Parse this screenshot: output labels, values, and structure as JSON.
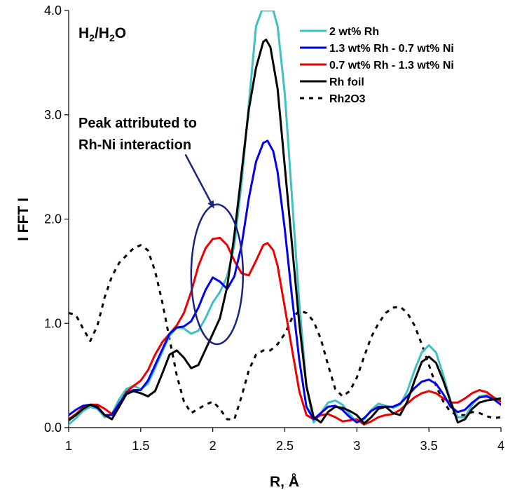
{
  "chart_data": {
    "type": "line",
    "xlabel": "R, Å",
    "ylabel": "I FFT I",
    "xlim": [
      1,
      4
    ],
    "ylim": [
      0,
      4
    ],
    "xticks": [
      "1",
      "1.5",
      "2",
      "2.5",
      "3",
      "3.5",
      "4"
    ],
    "yticks": [
      "0.0",
      "1.0",
      "2.0",
      "3.0",
      "4.0"
    ],
    "grid": false,
    "legend_position": "top-right",
    "condition_label": {
      "base": "H",
      "sub1": "2",
      "mid": "/H",
      "sub2": "2",
      "end": "O"
    },
    "annotation": {
      "line1": "Peak attributed to",
      "line2": "Rh-Ni interaction"
    },
    "series": [
      {
        "name": "2 wt% Rh",
        "color": "#40c0c0",
        "style": "solid",
        "points": [
          [
            1.0,
            0.03
          ],
          [
            1.05,
            0.09
          ],
          [
            1.1,
            0.16
          ],
          [
            1.15,
            0.2
          ],
          [
            1.2,
            0.18
          ],
          [
            1.25,
            0.1
          ],
          [
            1.3,
            0.13
          ],
          [
            1.35,
            0.27
          ],
          [
            1.4,
            0.37
          ],
          [
            1.45,
            0.4
          ],
          [
            1.5,
            0.37
          ],
          [
            1.55,
            0.42
          ],
          [
            1.6,
            0.57
          ],
          [
            1.65,
            0.73
          ],
          [
            1.7,
            0.88
          ],
          [
            1.75,
            0.96
          ],
          [
            1.8,
            0.95
          ],
          [
            1.85,
            0.9
          ],
          [
            1.9,
            0.93
          ],
          [
            1.95,
            1.05
          ],
          [
            2.0,
            1.2
          ],
          [
            2.05,
            1.3
          ],
          [
            2.1,
            1.45
          ],
          [
            2.15,
            1.75
          ],
          [
            2.2,
            2.35
          ],
          [
            2.25,
            3.1
          ],
          [
            2.3,
            3.85
          ],
          [
            2.34,
            4.0
          ],
          [
            2.42,
            4.0
          ],
          [
            2.45,
            3.85
          ],
          [
            2.5,
            3.2
          ],
          [
            2.55,
            2.2
          ],
          [
            2.6,
            1.2
          ],
          [
            2.65,
            0.4
          ],
          [
            2.7,
            0.05
          ],
          [
            2.75,
            0.14
          ],
          [
            2.8,
            0.24
          ],
          [
            2.85,
            0.26
          ],
          [
            2.9,
            0.22
          ],
          [
            2.95,
            0.13
          ],
          [
            3.0,
            0.05
          ],
          [
            3.05,
            0.08
          ],
          [
            3.1,
            0.17
          ],
          [
            3.15,
            0.23
          ],
          [
            3.2,
            0.21
          ],
          [
            3.25,
            0.19
          ],
          [
            3.3,
            0.22
          ],
          [
            3.35,
            0.35
          ],
          [
            3.4,
            0.55
          ],
          [
            3.45,
            0.72
          ],
          [
            3.5,
            0.79
          ],
          [
            3.55,
            0.72
          ],
          [
            3.6,
            0.5
          ],
          [
            3.65,
            0.25
          ],
          [
            3.7,
            0.1
          ],
          [
            3.75,
            0.1
          ],
          [
            3.8,
            0.22
          ],
          [
            3.85,
            0.3
          ],
          [
            3.9,
            0.31
          ],
          [
            3.95,
            0.28
          ],
          [
            4.0,
            0.26
          ]
        ]
      },
      {
        "name": "1.3 wt% Rh - 0.7 wt% Ni",
        "color": "#0000ee",
        "style": "solid",
        "points": [
          [
            1.0,
            0.12
          ],
          [
            1.05,
            0.17
          ],
          [
            1.1,
            0.21
          ],
          [
            1.15,
            0.22
          ],
          [
            1.2,
            0.19
          ],
          [
            1.25,
            0.12
          ],
          [
            1.3,
            0.12
          ],
          [
            1.35,
            0.23
          ],
          [
            1.4,
            0.33
          ],
          [
            1.45,
            0.36
          ],
          [
            1.5,
            0.36
          ],
          [
            1.55,
            0.45
          ],
          [
            1.6,
            0.6
          ],
          [
            1.65,
            0.75
          ],
          [
            1.7,
            0.9
          ],
          [
            1.75,
            0.96
          ],
          [
            1.8,
            0.97
          ],
          [
            1.85,
            1.02
          ],
          [
            1.9,
            1.15
          ],
          [
            1.95,
            1.32
          ],
          [
            2.0,
            1.44
          ],
          [
            2.05,
            1.4
          ],
          [
            2.1,
            1.33
          ],
          [
            2.15,
            1.45
          ],
          [
            2.2,
            1.75
          ],
          [
            2.25,
            2.2
          ],
          [
            2.3,
            2.55
          ],
          [
            2.35,
            2.73
          ],
          [
            2.38,
            2.75
          ],
          [
            2.42,
            2.65
          ],
          [
            2.45,
            2.45
          ],
          [
            2.5,
            1.9
          ],
          [
            2.55,
            1.25
          ],
          [
            2.6,
            0.65
          ],
          [
            2.65,
            0.2
          ],
          [
            2.7,
            0.08
          ],
          [
            2.75,
            0.14
          ],
          [
            2.8,
            0.2
          ],
          [
            2.85,
            0.21
          ],
          [
            2.9,
            0.17
          ],
          [
            2.95,
            0.1
          ],
          [
            3.0,
            0.05
          ],
          [
            3.05,
            0.09
          ],
          [
            3.1,
            0.16
          ],
          [
            3.15,
            0.2
          ],
          [
            3.2,
            0.2
          ],
          [
            3.25,
            0.2
          ],
          [
            3.3,
            0.23
          ],
          [
            3.35,
            0.3
          ],
          [
            3.4,
            0.38
          ],
          [
            3.45,
            0.44
          ],
          [
            3.5,
            0.46
          ],
          [
            3.55,
            0.42
          ],
          [
            3.6,
            0.32
          ],
          [
            3.65,
            0.2
          ],
          [
            3.7,
            0.15
          ],
          [
            3.75,
            0.17
          ],
          [
            3.8,
            0.24
          ],
          [
            3.85,
            0.29
          ],
          [
            3.9,
            0.3
          ],
          [
            3.95,
            0.27
          ],
          [
            4.0,
            0.22
          ]
        ]
      },
      {
        "name": "0.7 wt% Rh - 1.3 wt% Ni",
        "color": "#ee0000",
        "style": "solid",
        "points": [
          [
            1.0,
            0.08
          ],
          [
            1.05,
            0.13
          ],
          [
            1.1,
            0.19
          ],
          [
            1.15,
            0.22
          ],
          [
            1.2,
            0.22
          ],
          [
            1.25,
            0.18
          ],
          [
            1.3,
            0.13
          ],
          [
            1.35,
            0.22
          ],
          [
            1.4,
            0.34
          ],
          [
            1.45,
            0.4
          ],
          [
            1.5,
            0.45
          ],
          [
            1.55,
            0.55
          ],
          [
            1.6,
            0.7
          ],
          [
            1.65,
            0.82
          ],
          [
            1.7,
            0.9
          ],
          [
            1.75,
            0.98
          ],
          [
            1.8,
            1.1
          ],
          [
            1.85,
            1.3
          ],
          [
            1.9,
            1.55
          ],
          [
            1.95,
            1.72
          ],
          [
            2.0,
            1.81
          ],
          [
            2.05,
            1.82
          ],
          [
            2.1,
            1.75
          ],
          [
            2.15,
            1.6
          ],
          [
            2.2,
            1.48
          ],
          [
            2.25,
            1.46
          ],
          [
            2.3,
            1.6
          ],
          [
            2.35,
            1.75
          ],
          [
            2.38,
            1.77
          ],
          [
            2.42,
            1.7
          ],
          [
            2.45,
            1.55
          ],
          [
            2.5,
            1.15
          ],
          [
            2.55,
            0.75
          ],
          [
            2.6,
            0.35
          ],
          [
            2.65,
            0.12
          ],
          [
            2.7,
            0.08
          ],
          [
            2.75,
            0.12
          ],
          [
            2.8,
            0.13
          ],
          [
            2.85,
            0.1
          ],
          [
            2.9,
            0.06
          ],
          [
            2.95,
            0.07
          ],
          [
            3.0,
            0.08
          ],
          [
            3.05,
            0.03
          ],
          [
            3.1,
            0.06
          ],
          [
            3.15,
            0.1
          ],
          [
            3.2,
            0.12
          ],
          [
            3.25,
            0.13
          ],
          [
            3.3,
            0.17
          ],
          [
            3.35,
            0.23
          ],
          [
            3.4,
            0.29
          ],
          [
            3.45,
            0.33
          ],
          [
            3.5,
            0.35
          ],
          [
            3.55,
            0.33
          ],
          [
            3.6,
            0.28
          ],
          [
            3.65,
            0.24
          ],
          [
            3.7,
            0.24
          ],
          [
            3.75,
            0.28
          ],
          [
            3.8,
            0.33
          ],
          [
            3.85,
            0.36
          ],
          [
            3.9,
            0.34
          ],
          [
            3.95,
            0.29
          ],
          [
            4.0,
            0.25
          ]
        ]
      },
      {
        "name": "Rh foil",
        "color": "#000000",
        "style": "solid",
        "points": [
          [
            1.0,
            0.07
          ],
          [
            1.05,
            0.12
          ],
          [
            1.1,
            0.18
          ],
          [
            1.15,
            0.22
          ],
          [
            1.2,
            0.2
          ],
          [
            1.25,
            0.12
          ],
          [
            1.3,
            0.08
          ],
          [
            1.35,
            0.2
          ],
          [
            1.4,
            0.32
          ],
          [
            1.45,
            0.35
          ],
          [
            1.5,
            0.33
          ],
          [
            1.55,
            0.3
          ],
          [
            1.6,
            0.35
          ],
          [
            1.65,
            0.52
          ],
          [
            1.7,
            0.7
          ],
          [
            1.75,
            0.74
          ],
          [
            1.8,
            0.67
          ],
          [
            1.85,
            0.57
          ],
          [
            1.9,
            0.6
          ],
          [
            1.95,
            0.75
          ],
          [
            2.0,
            0.9
          ],
          [
            2.05,
            1.05
          ],
          [
            2.1,
            1.35
          ],
          [
            2.15,
            1.85
          ],
          [
            2.2,
            2.45
          ],
          [
            2.25,
            3.05
          ],
          [
            2.3,
            3.45
          ],
          [
            2.35,
            3.7
          ],
          [
            2.37,
            3.72
          ],
          [
            2.4,
            3.65
          ],
          [
            2.45,
            3.25
          ],
          [
            2.5,
            2.5
          ],
          [
            2.55,
            1.75
          ],
          [
            2.6,
            1.0
          ],
          [
            2.65,
            0.4
          ],
          [
            2.7,
            0.1
          ],
          [
            2.75,
            0.05
          ],
          [
            2.8,
            0.15
          ],
          [
            2.85,
            0.2
          ],
          [
            2.9,
            0.19
          ],
          [
            2.95,
            0.16
          ],
          [
            3.0,
            0.12
          ],
          [
            3.05,
            0.04
          ],
          [
            3.1,
            0.1
          ],
          [
            3.15,
            0.18
          ],
          [
            3.2,
            0.2
          ],
          [
            3.25,
            0.14
          ],
          [
            3.3,
            0.12
          ],
          [
            3.35,
            0.25
          ],
          [
            3.4,
            0.45
          ],
          [
            3.45,
            0.63
          ],
          [
            3.5,
            0.68
          ],
          [
            3.55,
            0.62
          ],
          [
            3.6,
            0.45
          ],
          [
            3.65,
            0.25
          ],
          [
            3.7,
            0.05
          ],
          [
            3.75,
            0.08
          ],
          [
            3.8,
            0.18
          ],
          [
            3.85,
            0.24
          ],
          [
            3.9,
            0.26
          ],
          [
            3.95,
            0.27
          ],
          [
            4.0,
            0.28
          ]
        ]
      },
      {
        "name": "Rh2O3",
        "color": "#000000",
        "style": "dashed",
        "points": [
          [
            1.0,
            1.1
          ],
          [
            1.05,
            1.08
          ],
          [
            1.1,
            0.95
          ],
          [
            1.15,
            0.83
          ],
          [
            1.2,
            0.98
          ],
          [
            1.25,
            1.25
          ],
          [
            1.3,
            1.45
          ],
          [
            1.35,
            1.58
          ],
          [
            1.4,
            1.65
          ],
          [
            1.45,
            1.72
          ],
          [
            1.5,
            1.75
          ],
          [
            1.55,
            1.7
          ],
          [
            1.6,
            1.5
          ],
          [
            1.65,
            1.2
          ],
          [
            1.7,
            0.85
          ],
          [
            1.75,
            0.5
          ],
          [
            1.8,
            0.25
          ],
          [
            1.85,
            0.14
          ],
          [
            1.9,
            0.18
          ],
          [
            1.95,
            0.22
          ],
          [
            2.0,
            0.25
          ],
          [
            2.05,
            0.18
          ],
          [
            2.1,
            0.08
          ],
          [
            2.15,
            0.08
          ],
          [
            2.2,
            0.3
          ],
          [
            2.25,
            0.55
          ],
          [
            2.3,
            0.7
          ],
          [
            2.35,
            0.74
          ],
          [
            2.4,
            0.74
          ],
          [
            2.45,
            0.8
          ],
          [
            2.5,
            0.9
          ],
          [
            2.55,
            1.05
          ],
          [
            2.6,
            1.12
          ],
          [
            2.65,
            1.1
          ],
          [
            2.7,
            1.02
          ],
          [
            2.75,
            0.85
          ],
          [
            2.8,
            0.6
          ],
          [
            2.85,
            0.37
          ],
          [
            2.9,
            0.3
          ],
          [
            2.95,
            0.35
          ],
          [
            3.0,
            0.48
          ],
          [
            3.05,
            0.68
          ],
          [
            3.1,
            0.87
          ],
          [
            3.15,
            1.0
          ],
          [
            3.2,
            1.1
          ],
          [
            3.25,
            1.15
          ],
          [
            3.3,
            1.16
          ],
          [
            3.35,
            1.1
          ],
          [
            3.4,
            0.98
          ],
          [
            3.45,
            0.8
          ],
          [
            3.5,
            0.6
          ],
          [
            3.55,
            0.4
          ],
          [
            3.6,
            0.25
          ],
          [
            3.65,
            0.15
          ],
          [
            3.7,
            0.12
          ],
          [
            3.75,
            0.12
          ],
          [
            3.8,
            0.15
          ],
          [
            3.85,
            0.14
          ],
          [
            3.9,
            0.11
          ],
          [
            3.95,
            0.09
          ],
          [
            4.0,
            0.1
          ]
        ]
      }
    ]
  }
}
